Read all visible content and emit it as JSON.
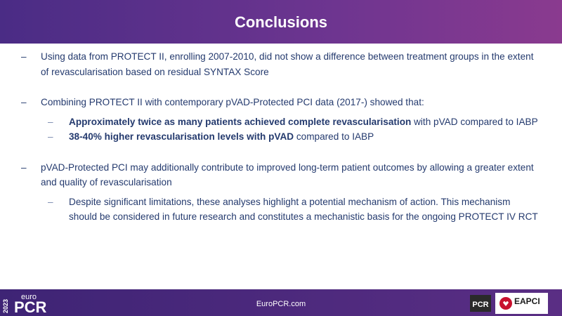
{
  "header": {
    "title": "Conclusions"
  },
  "bullets": [
    {
      "text": "Using data from PROTECT II, enrolling 2007-2010, did not show a difference between treatment groups in the extent of revascularisation based on residual SYNTAX Score"
    },
    {
      "text": "Combining PROTECT II with contemporary pVAD-Protected PCI data (2017-) showed that:",
      "sub": [
        {
          "bold": "Approximately twice as many patients achieved complete revascularisation",
          "text": "with pVAD compared to IABP"
        },
        {
          "bold": "38-40% higher revascularisation levels with pVAD",
          "text": "compared to IABP"
        }
      ]
    },
    {
      "text": "pVAD-Protected PCI may additionally contribute to improved long-term patient outcomes by allowing a greater extent and quality of revascularisation",
      "sub": [
        {
          "text": "Despite significant limitations, these analyses highlight a potential mechanism of action. This mechanism should be considered in future research and constitutes a mechanistic basis for the ongoing PROTECT IV RCT"
        }
      ]
    }
  ],
  "footer": {
    "year": "2023",
    "brand_small": "euro",
    "brand": "PCR",
    "url": "EuroPCR.com",
    "logo_pcr": "PCR",
    "logo_eapci": "EAPCI"
  }
}
